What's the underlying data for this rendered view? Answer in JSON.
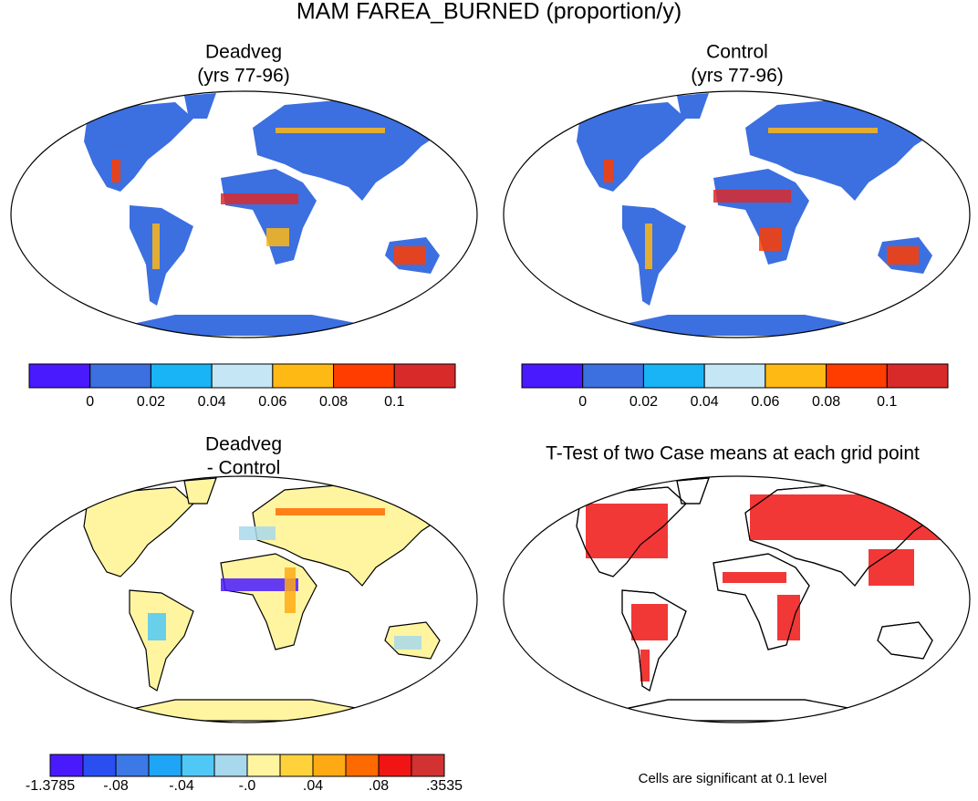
{
  "title": "MAM FAREA_BURNED (proportion/y)",
  "panels": [
    {
      "title": "Deadveg",
      "subtitle": "(yrs 77-96)",
      "land": "#3c6fe0"
    },
    {
      "title": "Control",
      "subtitle": "(yrs 77-96)",
      "land": "#3c6fe0"
    },
    {
      "title": "Deadveg",
      "subtitle": "- Control",
      "land": "#fff5a0"
    },
    {
      "title": "T-Test of two Case means at each grid point",
      "land": "#ffffff"
    }
  ],
  "colorbars": [
    {
      "labels": [
        "0",
        "0.02",
        "0.04",
        "0.06",
        "0.08",
        "0.1"
      ],
      "colors": [
        "#4a1aff",
        "#3c6fe0",
        "#19b4f5",
        "#c4e6f5",
        "#ffb914",
        "#ff3d00",
        "#d92a2a"
      ]
    },
    {
      "labels": [
        "0",
        "0.02",
        "0.04",
        "0.06",
        "0.08",
        "0.1"
      ],
      "colors": [
        "#4a1aff",
        "#3c6fe0",
        "#19b4f5",
        "#c4e6f5",
        "#ffb914",
        "#ff3d00",
        "#d92a2a"
      ]
    },
    {
      "labels": [
        "-1.3785",
        "-.08",
        "-.04",
        "-.0",
        ".04",
        ".08",
        ".3535"
      ],
      "colors": [
        "#4a1aff",
        "#2a4ff0",
        "#3c78e6",
        "#1ea5f5",
        "#50c8f5",
        "#a8d8eb",
        "#fff5a0",
        "#ffd23c",
        "#ffaa14",
        "#ff6a00",
        "#f01414",
        "#d23232"
      ]
    }
  ],
  "note": "Cells are significant at 0.1 level"
}
